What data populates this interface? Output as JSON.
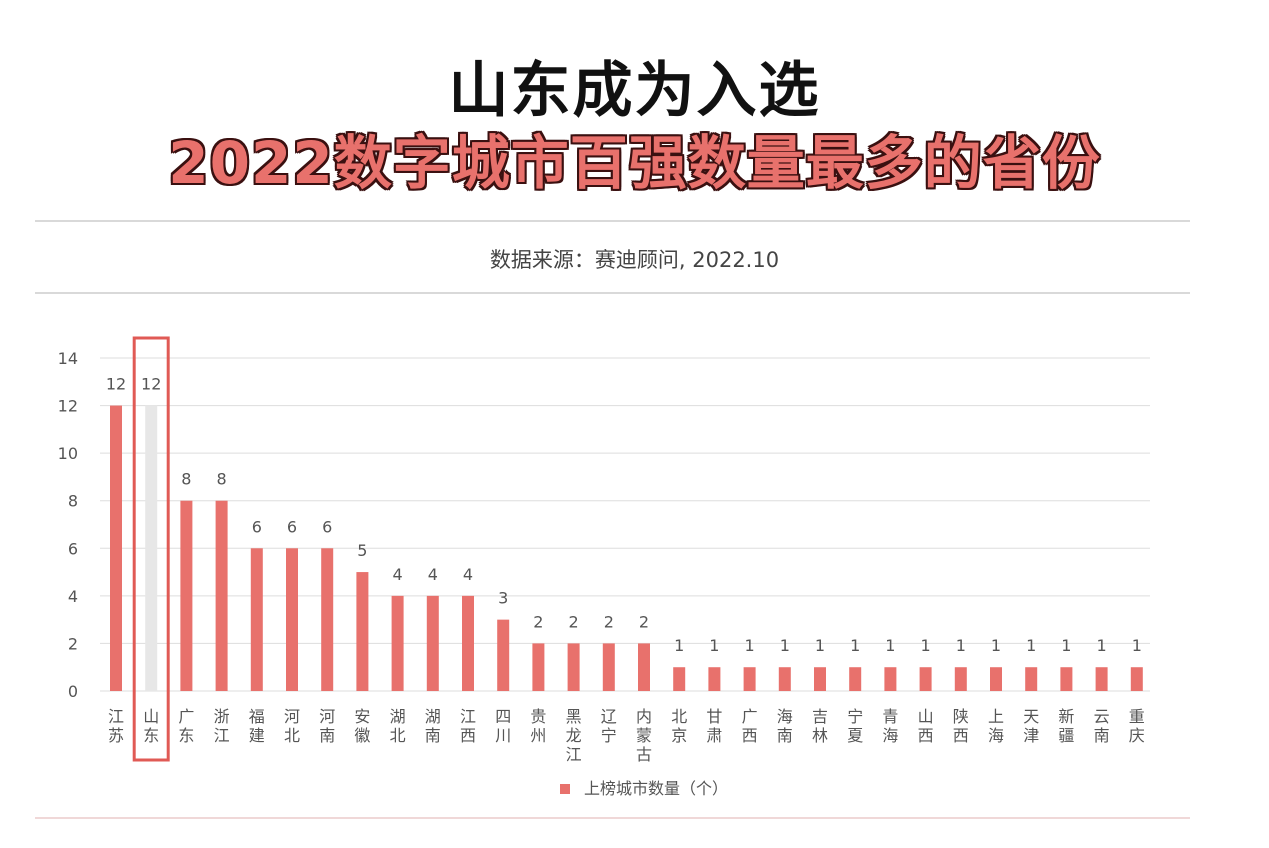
{
  "title_line1": "山东成为入选",
  "title_line2": "2022数字城市百强数量最多的省份",
  "source": "数据来源：赛迪顾问, 2022.10",
  "colors": {
    "bar": "#e8716c",
    "highlight_bar": "#e7e7e7",
    "highlight_border": "#e05a55",
    "grid": "#dddddd",
    "text": "#555555"
  },
  "chart_data": {
    "type": "bar",
    "categories": [
      "江苏",
      "山东",
      "广东",
      "浙江",
      "福建",
      "河北",
      "河南",
      "安徽",
      "湖北",
      "湖南",
      "江西",
      "四川",
      "贵州",
      "黑龙江",
      "辽宁",
      "内蒙古",
      "北京",
      "甘肃",
      "广西",
      "海南",
      "吉林",
      "宁夏",
      "青海",
      "山西",
      "陕西",
      "上海",
      "天津",
      "新疆",
      "云南",
      "重庆"
    ],
    "series": [
      {
        "name": "上榜城市数量（个）",
        "values": [
          12,
          12,
          8,
          8,
          6,
          6,
          6,
          5,
          4,
          4,
          4,
          3,
          2,
          2,
          2,
          2,
          1,
          1,
          1,
          1,
          1,
          1,
          1,
          1,
          1,
          1,
          1,
          1,
          1,
          1
        ]
      }
    ],
    "highlight_category": "山东",
    "yticks": [
      0,
      2,
      4,
      6,
      8,
      10,
      12,
      14
    ],
    "ylim": [
      0,
      14
    ],
    "grid": true,
    "legend_position": "bottom"
  }
}
